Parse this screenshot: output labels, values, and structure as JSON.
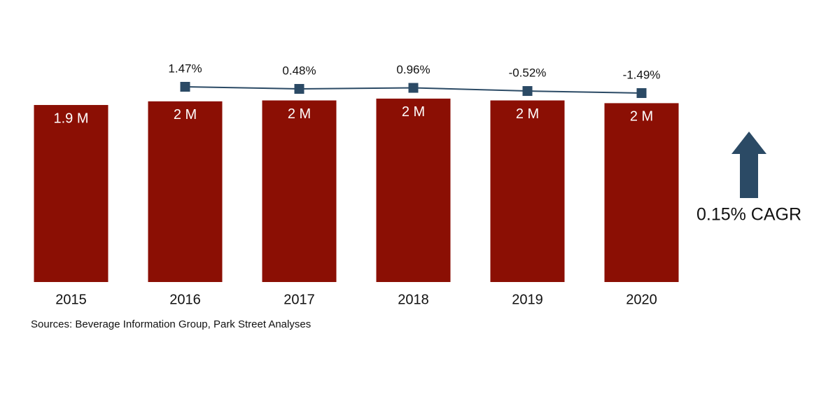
{
  "chart_data": {
    "type": "bar",
    "categories": [
      "2015",
      "2016",
      "2017",
      "2018",
      "2019",
      "2020"
    ],
    "series": [
      {
        "type": "bar",
        "color": "#8b0f04",
        "values": [
          1.94,
          1.98,
          1.99,
          2.01,
          1.99,
          1.96
        ],
        "value_labels": [
          "1.9 M",
          "2 M",
          "2 M",
          "2 M",
          "2 M",
          "2 M"
        ]
      },
      {
        "type": "line",
        "color": "#2b4a65",
        "values": [
          null,
          1.47,
          0.48,
          0.96,
          -0.52,
          -1.49
        ],
        "value_labels": [
          null,
          "1.47%",
          "0.48%",
          "0.96%",
          "-0.52%",
          "-1.49%"
        ]
      }
    ],
    "annotation": "0.15% CAGR",
    "source": "Sources: Beverage Information Group, Park Street Analyses"
  }
}
